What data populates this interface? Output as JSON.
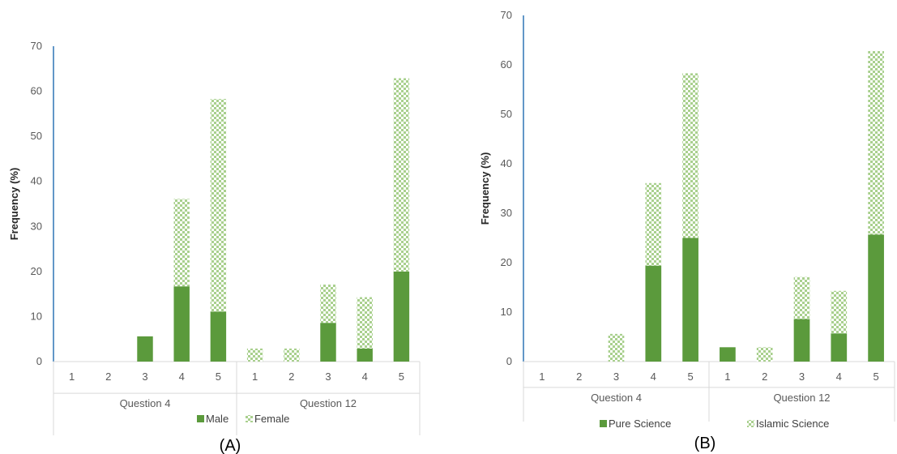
{
  "colors": {
    "solid": "#5B9A3C",
    "pattern_fg": "#A9D08E",
    "axis": "#2E75B6",
    "grid": "#D9D9D9"
  },
  "chart_data": [
    {
      "type": "bar",
      "stacked": true,
      "caption": "(A)",
      "ylabel": "Frequency (%)",
      "ylim": [
        0,
        70
      ],
      "yticks": [
        0,
        10,
        20,
        30,
        40,
        50,
        60,
        70
      ],
      "groups": [
        "Question 4",
        "Question 12"
      ],
      "categories": [
        "1",
        "2",
        "3",
        "4",
        "5",
        "1",
        "2",
        "3",
        "4",
        "5"
      ],
      "series": [
        {
          "name": "Male",
          "style": "solid",
          "values": [
            0,
            0,
            5.6,
            16.7,
            11.1,
            0,
            0,
            8.6,
            2.9,
            20.0
          ]
        },
        {
          "name": "Female",
          "style": "pattern",
          "values": [
            0,
            0,
            0,
            19.4,
            47.2,
            2.9,
            2.9,
            8.5,
            11.4,
            42.9
          ]
        }
      ],
      "legend": "bottom"
    },
    {
      "type": "bar",
      "stacked": true,
      "caption": "(B)",
      "ylabel": "Frequency (%)",
      "ylim": [
        0,
        70
      ],
      "yticks": [
        0,
        10,
        20,
        30,
        40,
        50,
        60,
        70
      ],
      "groups": [
        "Question 4",
        "Question 12"
      ],
      "categories": [
        "1",
        "2",
        "3",
        "4",
        "5",
        "1",
        "2",
        "3",
        "4",
        "5"
      ],
      "series": [
        {
          "name": "Pure Science",
          "style": "solid",
          "values": [
            0,
            0,
            0,
            19.4,
            25.0,
            2.9,
            0,
            8.6,
            5.7,
            25.7
          ]
        },
        {
          "name": "Islamic Science",
          "style": "pattern",
          "values": [
            0,
            0,
            5.6,
            16.7,
            33.3,
            0,
            2.9,
            8.5,
            8.6,
            37.1
          ]
        }
      ],
      "legend": "bottom"
    }
  ]
}
